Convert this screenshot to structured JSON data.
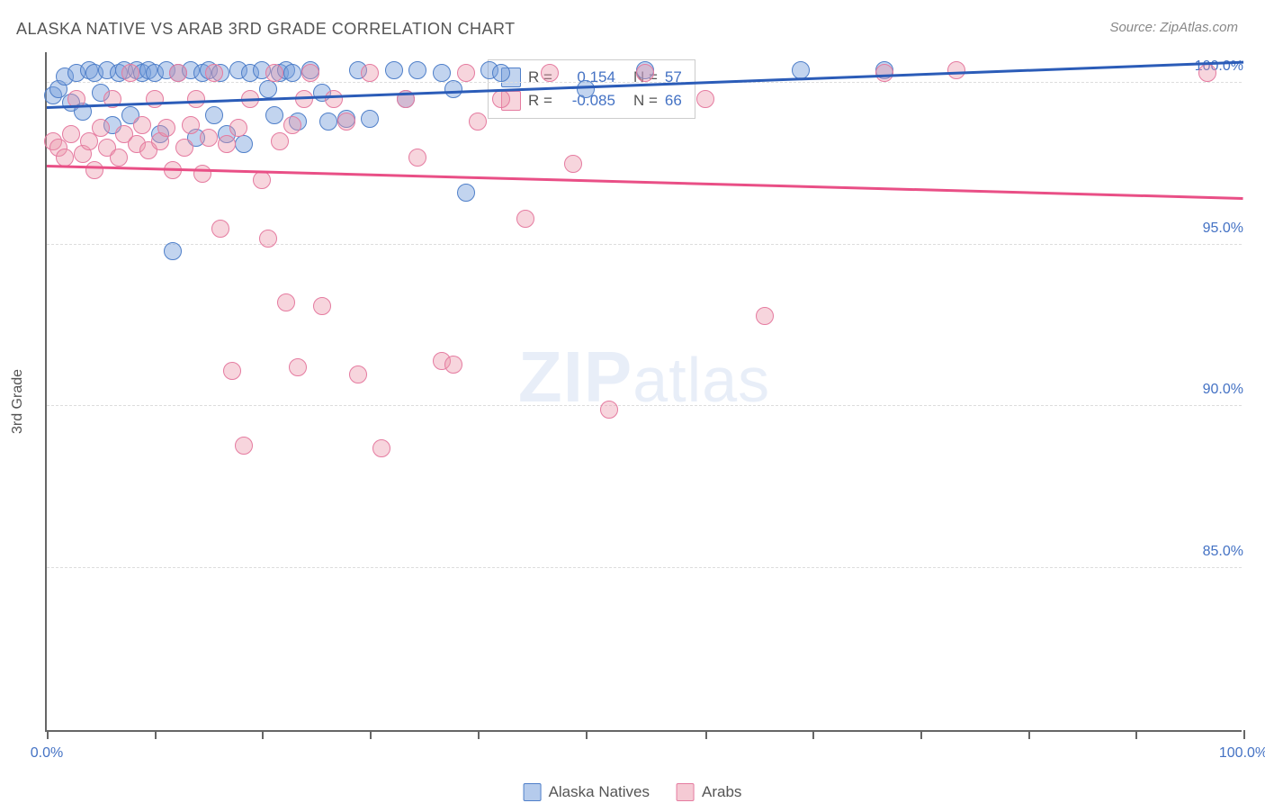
{
  "title": "ALASKA NATIVE VS ARAB 3RD GRADE CORRELATION CHART",
  "source": "Source: ZipAtlas.com",
  "watermark_strong": "ZIP",
  "watermark_light": "atlas",
  "chart": {
    "type": "scatter",
    "ylabel": "3rd Grade",
    "xlim": [
      0,
      100
    ],
    "ylim": [
      80,
      101
    ],
    "background_color": "#ffffff",
    "grid_color": "#dddddd",
    "ytick_labels": [
      "85.0%",
      "90.0%",
      "95.0%",
      "100.0%"
    ],
    "ytick_values": [
      85,
      90,
      95,
      100
    ],
    "xtick_positions": [
      0,
      9,
      18,
      27,
      36,
      45,
      55,
      64,
      73,
      82,
      91,
      100
    ],
    "xtick_labels": {
      "0": "0.0%",
      "100": "100.0%"
    },
    "marker_radius": 10,
    "series": [
      {
        "name": "Alaska Natives",
        "fill": "rgba(120,160,220,0.45)",
        "stroke": "#4f7fc9",
        "trend_color": "#2b5cb8",
        "R": "0.154",
        "N": "57",
        "trend": {
          "x1": 0,
          "y1": 99.2,
          "x2": 100,
          "y2": 100.6
        },
        "points": [
          [
            0.5,
            99.6
          ],
          [
            1,
            99.8
          ],
          [
            1.5,
            100.2
          ],
          [
            2,
            99.4
          ],
          [
            2.5,
            100.3
          ],
          [
            3,
            99.1
          ],
          [
            3.5,
            100.4
          ],
          [
            4,
            100.3
          ],
          [
            4.5,
            99.7
          ],
          [
            5,
            100.4
          ],
          [
            5.5,
            98.7
          ],
          [
            6,
            100.3
          ],
          [
            6.5,
            100.4
          ],
          [
            7,
            99.0
          ],
          [
            7.5,
            100.4
          ],
          [
            8,
            100.3
          ],
          [
            8.5,
            100.4
          ],
          [
            9,
            100.3
          ],
          [
            9.5,
            98.4
          ],
          [
            10,
            100.4
          ],
          [
            10.5,
            94.8
          ],
          [
            11,
            100.3
          ],
          [
            12,
            100.4
          ],
          [
            12.5,
            98.3
          ],
          [
            13,
            100.3
          ],
          [
            13.5,
            100.4
          ],
          [
            14,
            99.0
          ],
          [
            14.5,
            100.3
          ],
          [
            15,
            98.4
          ],
          [
            16,
            100.4
          ],
          [
            16.5,
            98.1
          ],
          [
            17,
            100.3
          ],
          [
            18,
            100.4
          ],
          [
            18.5,
            99.8
          ],
          [
            19,
            99.0
          ],
          [
            19.5,
            100.3
          ],
          [
            20,
            100.4
          ],
          [
            20.5,
            100.3
          ],
          [
            21,
            98.8
          ],
          [
            22,
            100.4
          ],
          [
            23,
            99.7
          ],
          [
            23.5,
            98.8
          ],
          [
            25,
            98.9
          ],
          [
            26,
            100.4
          ],
          [
            27,
            98.9
          ],
          [
            29,
            100.4
          ],
          [
            30,
            99.5
          ],
          [
            31,
            100.4
          ],
          [
            33,
            100.3
          ],
          [
            34,
            99.8
          ],
          [
            35,
            96.6
          ],
          [
            37,
            100.4
          ],
          [
            38,
            100.3
          ],
          [
            45,
            99.8
          ],
          [
            50,
            100.4
          ],
          [
            63,
            100.4
          ],
          [
            70,
            100.4
          ]
        ]
      },
      {
        "name": "Arabs",
        "fill": "rgba(235,150,170,0.40)",
        "stroke": "#e57ba0",
        "trend_color": "#e94f86",
        "R": "-0.085",
        "N": "66",
        "trend": {
          "x1": 0,
          "y1": 97.4,
          "x2": 100,
          "y2": 96.4
        },
        "points": [
          [
            0.5,
            98.2
          ],
          [
            1,
            98.0
          ],
          [
            1.5,
            97.7
          ],
          [
            2,
            98.4
          ],
          [
            2.5,
            99.5
          ],
          [
            3,
            97.8
          ],
          [
            3.5,
            98.2
          ],
          [
            4,
            97.3
          ],
          [
            4.5,
            98.6
          ],
          [
            5,
            98.0
          ],
          [
            5.5,
            99.5
          ],
          [
            6,
            97.7
          ],
          [
            6.5,
            98.4
          ],
          [
            7,
            100.3
          ],
          [
            7.5,
            98.1
          ],
          [
            8,
            98.7
          ],
          [
            8.5,
            97.9
          ],
          [
            9,
            99.5
          ],
          [
            9.5,
            98.2
          ],
          [
            10,
            98.6
          ],
          [
            10.5,
            97.3
          ],
          [
            11,
            100.3
          ],
          [
            11.5,
            98.0
          ],
          [
            12,
            98.7
          ],
          [
            12.5,
            99.5
          ],
          [
            13,
            97.2
          ],
          [
            13.5,
            98.3
          ],
          [
            14,
            100.3
          ],
          [
            14.5,
            95.5
          ],
          [
            15,
            98.1
          ],
          [
            15.5,
            91.1
          ],
          [
            16,
            98.6
          ],
          [
            16.5,
            88.8
          ],
          [
            17,
            99.5
          ],
          [
            18,
            97.0
          ],
          [
            18.5,
            95.2
          ],
          [
            19,
            100.3
          ],
          [
            19.5,
            98.2
          ],
          [
            20,
            93.2
          ],
          [
            20.5,
            98.7
          ],
          [
            21,
            91.2
          ],
          [
            21.5,
            99.5
          ],
          [
            22,
            100.3
          ],
          [
            23,
            93.1
          ],
          [
            24,
            99.5
          ],
          [
            25,
            98.8
          ],
          [
            26,
            91.0
          ],
          [
            27,
            100.3
          ],
          [
            28,
            88.7
          ],
          [
            30,
            99.5
          ],
          [
            31,
            97.7
          ],
          [
            33,
            91.4
          ],
          [
            34,
            91.3
          ],
          [
            35,
            100.3
          ],
          [
            36,
            98.8
          ],
          [
            38,
            99.5
          ],
          [
            40,
            95.8
          ],
          [
            42,
            100.3
          ],
          [
            44,
            97.5
          ],
          [
            47,
            89.9
          ],
          [
            50,
            100.3
          ],
          [
            55,
            99.5
          ],
          [
            60,
            92.8
          ],
          [
            70,
            100.3
          ],
          [
            76,
            100.4
          ],
          [
            97,
            100.3
          ]
        ]
      }
    ],
    "bottom_legend": [
      {
        "label": "Alaska Natives",
        "fill": "rgba(120,160,220,0.55)",
        "stroke": "#4f7fc9"
      },
      {
        "label": "Arabs",
        "fill": "rgba(235,150,170,0.50)",
        "stroke": "#e57ba0"
      }
    ]
  }
}
